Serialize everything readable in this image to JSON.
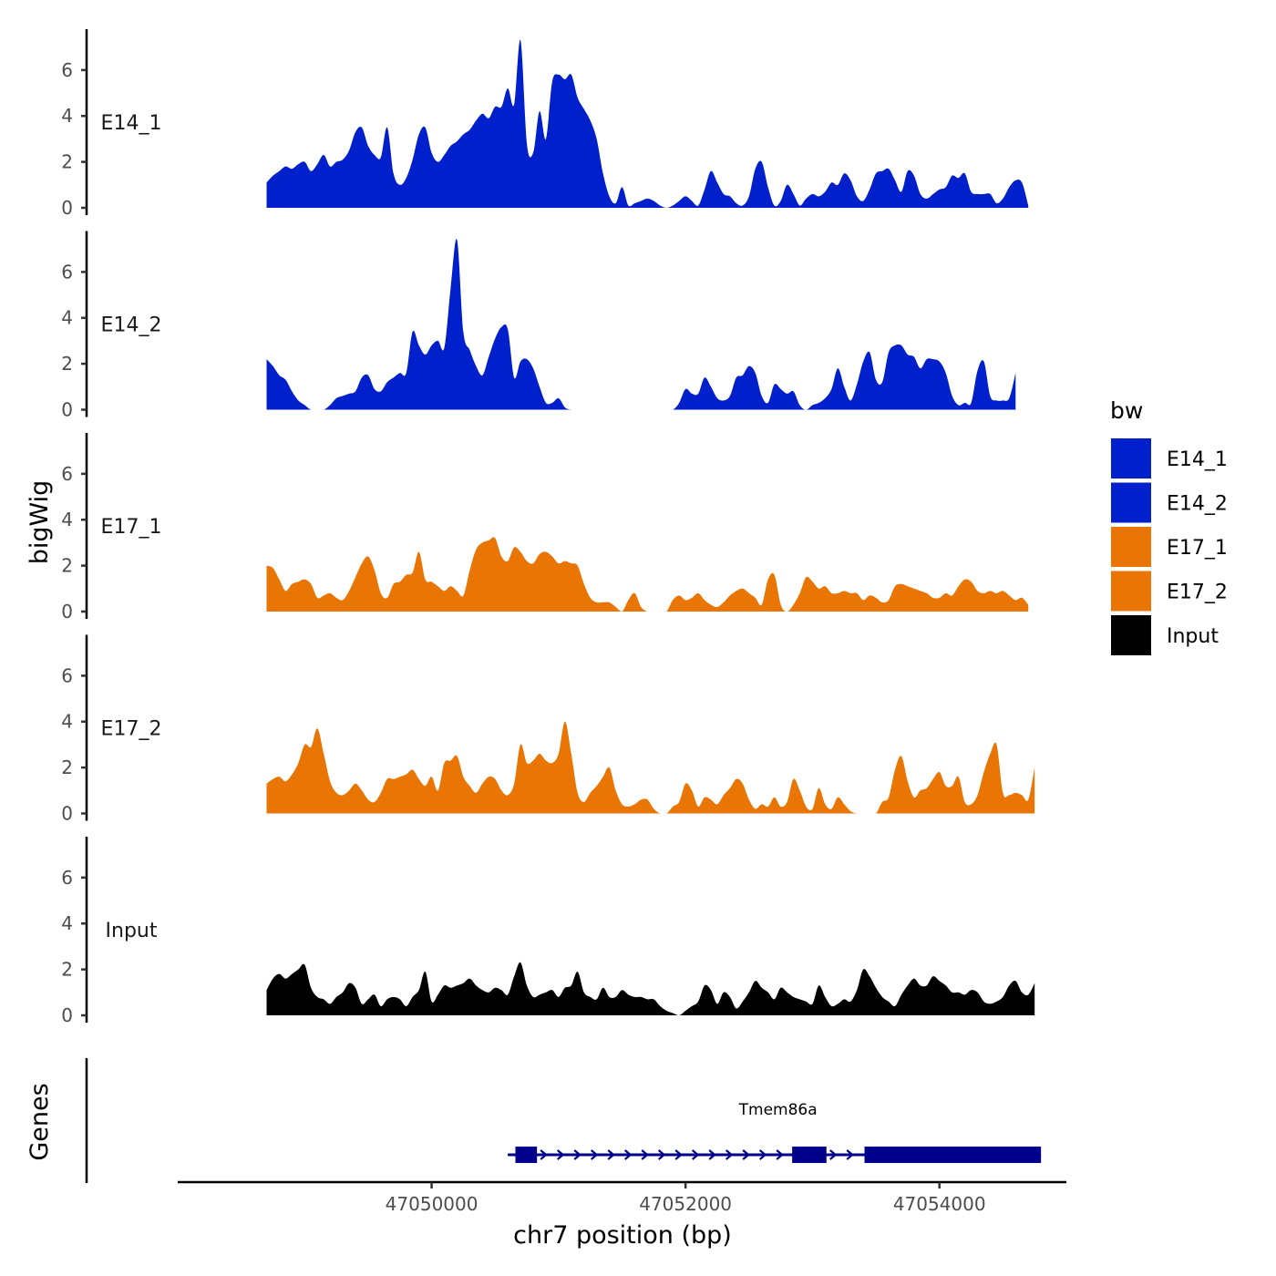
{
  "chart_data": {
    "type": "area",
    "title": "",
    "ylabel": "bigWig",
    "genes_label": "Genes",
    "xlabel": "chr7 position (bp)",
    "chromosome": "chr7",
    "xlim": [
      47048000,
      47055000
    ],
    "x_ticks": [
      47050000,
      47052000,
      47054000
    ],
    "x_tick_labels": [
      "47050000",
      "47052000",
      "47054000"
    ],
    "ylim": [
      0,
      7.9
    ],
    "y_ticks": [
      0,
      2,
      4,
      6
    ],
    "y_tick_labels": [
      "0",
      "2",
      "4",
      "6"
    ],
    "signal_range": [
      47048700,
      47054800
    ],
    "bin_width": 50,
    "tracks": [
      {
        "name": "E14_1",
        "color": "#0020CC",
        "values": [
          1.1,
          1.4,
          1.6,
          1.8,
          1.7,
          1.9,
          2.0,
          1.6,
          1.9,
          2.3,
          1.8,
          2.0,
          2.1,
          2.5,
          3.3,
          3.5,
          2.7,
          2.3,
          2.2,
          3.5,
          1.5,
          1.0,
          1.3,
          2.1,
          3.2,
          3.5,
          2.4,
          2.0,
          2.3,
          2.7,
          2.9,
          3.2,
          3.4,
          3.8,
          4.1,
          3.9,
          4.4,
          4.4,
          5.2,
          4.5,
          7.3,
          2.8,
          2.4,
          4.2,
          3.0,
          5.5,
          5.8,
          5.6,
          5.8,
          4.8,
          4.3,
          3.8,
          3.0,
          1.5,
          0.5,
          0.2,
          0.9,
          0.1,
          0.2,
          0.3,
          0.4,
          0.3,
          0.1,
          0,
          0.1,
          0.3,
          0.5,
          0.3,
          0.1,
          0.8,
          1.6,
          1.1,
          0.6,
          0.5,
          0.2,
          0.1,
          0.5,
          1.7,
          2.0,
          0.9,
          0.1,
          0.3,
          1.0,
          0.6,
          0.1,
          0.4,
          0.6,
          0.5,
          0.7,
          1.1,
          1.0,
          1.5,
          1.2,
          0.5,
          0.3,
          0.8,
          1.5,
          1.6,
          1.7,
          1.2,
          0.7,
          1.6,
          1.4,
          0.6,
          0.4,
          0.6,
          0.8,
          0.9,
          1.4,
          1.3,
          1.5,
          0.7,
          0.6,
          0.6,
          0.6,
          0.2,
          0.4,
          0.9,
          1.2,
          1.1,
          0.1
        ]
      },
      {
        "name": "E14_2",
        "color": "#0020CC",
        "values": [
          2.2,
          1.9,
          1.5,
          1.3,
          0.8,
          0.4,
          0.2,
          0,
          0,
          0,
          0.2,
          0.5,
          0.6,
          0.7,
          0.8,
          1.4,
          1.5,
          0.9,
          0.8,
          1.2,
          1.4,
          1.6,
          1.6,
          3.4,
          2.8,
          2.4,
          2.8,
          3.0,
          2.7,
          5.3,
          7.4,
          3.4,
          2.6,
          1.9,
          1.5,
          2.3,
          3.1,
          3.6,
          3.5,
          1.4,
          2.1,
          2.2,
          1.8,
          1.0,
          0.3,
          0.3,
          0.5,
          0.1,
          0,
          0,
          0,
          0,
          0,
          0,
          0,
          0,
          0,
          0,
          0,
          0,
          0,
          0,
          0,
          0,
          0,
          0.3,
          0.9,
          0.7,
          0.7,
          1.4,
          1.0,
          0.5,
          0.4,
          0.6,
          1.4,
          1.5,
          1.9,
          1.6,
          0.6,
          0.3,
          1.1,
          0.9,
          0.7,
          0.8,
          0.2,
          0,
          0.2,
          0.3,
          0.5,
          0.9,
          1.8,
          1.0,
          0.4,
          1.1,
          2.1,
          2.5,
          1.3,
          1.2,
          2.5,
          2.8,
          2.8,
          2.4,
          2.3,
          1.8,
          2.2,
          2.2,
          2.1,
          1.6,
          0.6,
          0.2,
          0.3,
          0.3,
          1.7,
          2.1,
          0.6,
          0.4,
          0.4,
          0.5,
          1.6
        ]
      },
      {
        "name": "E17_1",
        "color": "#E87504",
        "values": [
          2.0,
          1.9,
          1.4,
          0.9,
          1.2,
          1.3,
          1.4,
          1.2,
          0.6,
          0.7,
          0.8,
          0.6,
          0.5,
          0.9,
          1.5,
          2.1,
          2.4,
          1.8,
          0.8,
          0.6,
          1.2,
          1.3,
          1.6,
          1.7,
          2.6,
          1.4,
          1.3,
          1.1,
          0.9,
          1.1,
          0.9,
          0.7,
          1.8,
          2.7,
          3.0,
          3.1,
          3.2,
          2.4,
          2.2,
          2.8,
          2.6,
          2.2,
          2.1,
          2.5,
          2.6,
          2.4,
          2.1,
          2.2,
          2.1,
          2.0,
          1.2,
          0.6,
          0.4,
          0.4,
          0.4,
          0.2,
          0,
          0.5,
          0.8,
          0.2,
          0,
          0,
          0,
          0,
          0.5,
          0.7,
          0.5,
          0.6,
          0.8,
          0.5,
          0.3,
          0.2,
          0.4,
          0.7,
          0.9,
          1.0,
          0.8,
          0.6,
          0.3,
          1.4,
          1.6,
          0.3,
          0,
          0.3,
          0.8,
          1.5,
          1.3,
          1.0,
          1.1,
          0.8,
          0.8,
          0.9,
          0.8,
          0.8,
          0.5,
          0.7,
          0.6,
          0.4,
          0.5,
          1.1,
          1.2,
          1.1,
          1.0,
          0.9,
          0.8,
          0.6,
          0.6,
          0.8,
          0.7,
          1.1,
          1.4,
          1.3,
          0.9,
          0.8,
          0.9,
          0.8,
          0.9,
          0.7,
          0.5,
          0.6,
          0.3
        ]
      },
      {
        "name": "E17_2",
        "color": "#E87504",
        "values": [
          1.3,
          1.5,
          1.6,
          1.4,
          1.7,
          2.2,
          3.0,
          2.9,
          3.7,
          2.6,
          1.4,
          0.9,
          0.8,
          1.0,
          1.3,
          1.0,
          0.6,
          0.5,
          0.9,
          1.5,
          1.5,
          1.6,
          1.7,
          1.9,
          1.5,
          1.2,
          1.6,
          1.0,
          2.2,
          2.3,
          2.5,
          1.6,
          1.2,
          0.9,
          1.3,
          1.6,
          1.5,
          1.0,
          0.8,
          1.3,
          3.0,
          2.2,
          2.3,
          2.6,
          2.3,
          2.2,
          2.6,
          4.0,
          2.6,
          0.9,
          0.5,
          0.9,
          1.2,
          1.6,
          2.0,
          1.0,
          0.4,
          0.3,
          0.4,
          0.6,
          0.6,
          0.2,
          0,
          0,
          0.3,
          0.5,
          1.3,
          1.0,
          0.3,
          0.7,
          0.6,
          0.4,
          0.8,
          1.1,
          1.5,
          1.3,
          0.6,
          0.2,
          0.4,
          0.3,
          0.7,
          0.3,
          0.5,
          1.5,
          1.0,
          0.3,
          0.2,
          1.1,
          0.4,
          0.2,
          0.7,
          0.4,
          0.1,
          0,
          0,
          0,
          0,
          0.5,
          0.7,
          1.9,
          2.5,
          1.4,
          0.7,
          1.0,
          1.1,
          1.5,
          1.8,
          1.2,
          1.2,
          1.6,
          0.5,
          0.4,
          0.8,
          1.8,
          2.6,
          3.0,
          0.9,
          0.8,
          0.9,
          0.8,
          0.6,
          2.0
        ]
      },
      {
        "name": "Input",
        "color": "#000000",
        "values": [
          1.1,
          1.6,
          1.8,
          1.6,
          1.8,
          2.0,
          2.2,
          1.2,
          0.8,
          0.7,
          0.5,
          0.8,
          1.0,
          1.4,
          1.2,
          0.5,
          0.7,
          0.9,
          0.4,
          0.7,
          0.8,
          0.7,
          0.4,
          0.8,
          1.1,
          1.9,
          0.6,
          0.9,
          1.3,
          1.2,
          1.3,
          1.4,
          1.6,
          1.3,
          1.1,
          1.0,
          1.2,
          1.1,
          0.9,
          1.7,
          2.3,
          1.3,
          0.8,
          0.9,
          1.0,
          1.1,
          0.8,
          1.2,
          1.3,
          1.9,
          1.0,
          0.8,
          0.7,
          1.2,
          0.8,
          0.8,
          1.1,
          0.9,
          0.8,
          0.8,
          0.7,
          0.7,
          0.4,
          0.2,
          0.1,
          0,
          0.2,
          0.4,
          0.6,
          1.3,
          1.1,
          0.5,
          1.0,
          0.8,
          0.3,
          0.6,
          1.0,
          1.5,
          1.2,
          1.0,
          0.7,
          1.2,
          1.0,
          0.8,
          0.7,
          0.6,
          0.5,
          1.3,
          0.8,
          0.4,
          0.5,
          0.7,
          0.6,
          1.1,
          2.0,
          1.7,
          1.2,
          0.8,
          0.6,
          0.4,
          0.9,
          1.3,
          1.6,
          1.3,
          1.3,
          1.7,
          1.5,
          1.3,
          1.0,
          1.0,
          0.9,
          1.1,
          1.0,
          0.6,
          0.5,
          0.6,
          0.8,
          1.3,
          1.5,
          1.0,
          0.9,
          1.4
        ]
      }
    ],
    "legend": {
      "title": "bw",
      "position": "right",
      "entries": [
        {
          "label": "E14_1",
          "color": "#0020CC"
        },
        {
          "label": "E14_2",
          "color": "#0020CC"
        },
        {
          "label": "E17_1",
          "color": "#E87504"
        },
        {
          "label": "E17_2",
          "color": "#E87504"
        },
        {
          "label": "Input",
          "color": "#000000"
        }
      ]
    },
    "genes": [
      {
        "name": "Tmem86a",
        "strand": "+",
        "color": "#00008B",
        "start": 47050600,
        "end": 47054800,
        "exons": [
          [
            47050660,
            47050830
          ],
          [
            47052840,
            47053110
          ],
          [
            47053410,
            47054800
          ]
        ]
      }
    ]
  }
}
